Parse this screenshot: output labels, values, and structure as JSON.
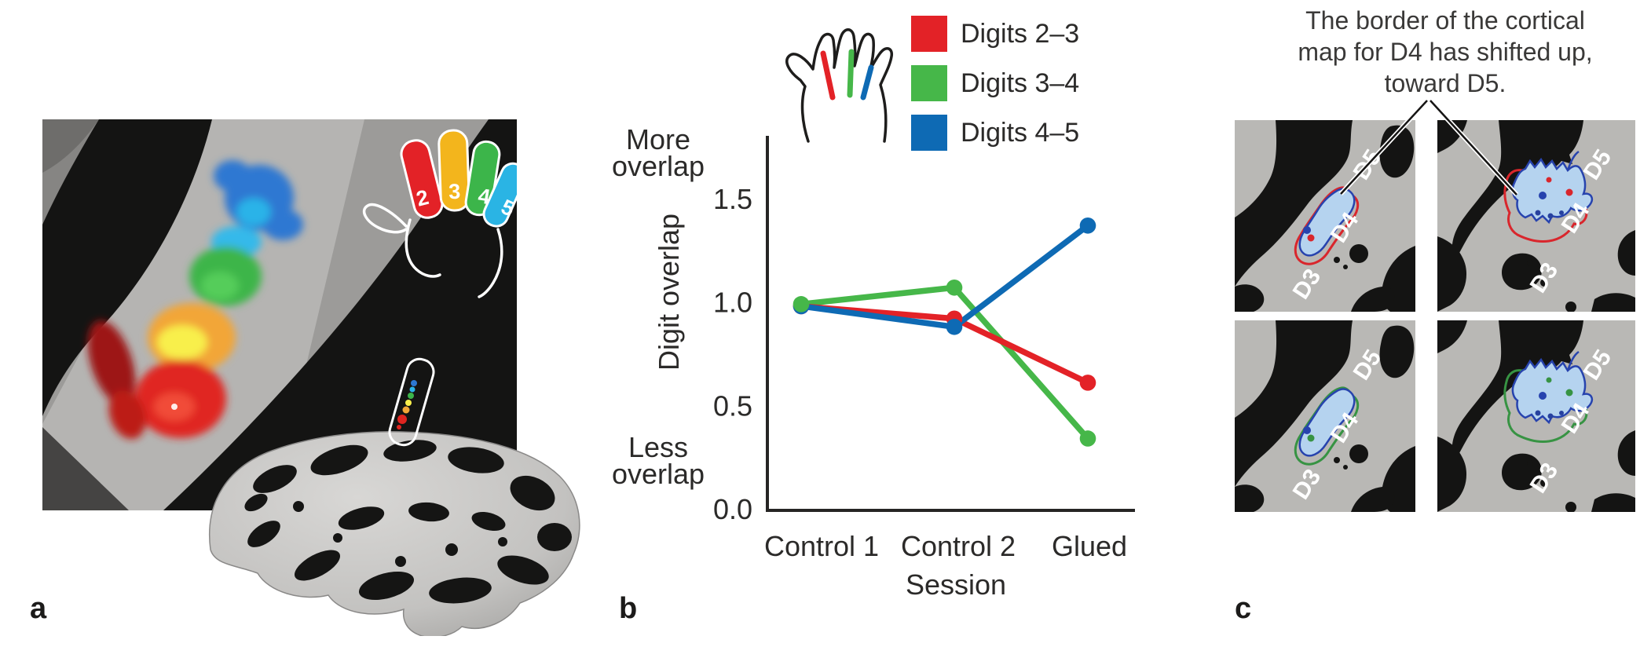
{
  "figure": {
    "background": "#ffffff"
  },
  "panels": {
    "a": {
      "label": "a"
    },
    "b": {
      "label": "b"
    },
    "c": {
      "label": "c"
    }
  },
  "colors": {
    "red": "#e32227",
    "green": "#46b749",
    "blue": "#0e6ab4",
    "axis": "#262524",
    "text": "#2b2a29",
    "panel_c_background": "#b9b8b5",
    "panel_c_black": "#141413",
    "map_fill": "#b5d3ef",
    "map_blue_outline": "#2743ae",
    "map_red_outline": "#d9262c",
    "map_green_outline": "#379343"
  },
  "panel_a": {
    "hand_digit_labels": [
      "2",
      "3",
      "4",
      "5"
    ]
  },
  "panel_b": {
    "legend": [
      {
        "label": "Digits 2–3",
        "color": "#e32227"
      },
      {
        "label": "Digits 3–4",
        "color": "#46b749"
      },
      {
        "label": "Digits 4–5",
        "color": "#0e6ab4"
      }
    ]
  },
  "chart_data": {
    "type": "line",
    "title": "",
    "categories": [
      "Control 1",
      "Control 2",
      "Glued"
    ],
    "series": [
      {
        "name": "Digits 2–3",
        "color": "#e32227",
        "values": [
          0.98,
          0.92,
          0.61
        ]
      },
      {
        "name": "Digits 3–4",
        "color": "#46b749",
        "values": [
          0.99,
          1.07,
          0.34
        ]
      },
      {
        "name": "Digits 4–5",
        "color": "#0e6ab4",
        "values": [
          0.98,
          0.88,
          1.37
        ]
      }
    ],
    "xlabel": "Session",
    "ylabel": "Digit overlap",
    "y_ticks": [
      0,
      0.5,
      1,
      1.5
    ],
    "ylim": [
      0,
      1.8
    ],
    "grid": false,
    "legend_position": "top-right",
    "y_axis_annotations": {
      "top": "More overlap",
      "bottom": "Less overlap"
    }
  },
  "panel_c": {
    "caption_lines": [
      "The border of the cortical",
      "map for D4 has shifted up,",
      "toward D5."
    ],
    "region_labels": [
      "D3",
      "D4",
      "D5"
    ],
    "images": [
      {
        "position": "top-left",
        "outline_color": "#d9262c",
        "variant": "baseline"
      },
      {
        "position": "top-right",
        "outline_color": "#d9262c",
        "variant": "shifted"
      },
      {
        "position": "bottom-left",
        "outline_color": "#379343",
        "variant": "baseline"
      },
      {
        "position": "bottom-right",
        "outline_color": "#379343",
        "variant": "shifted"
      }
    ]
  }
}
